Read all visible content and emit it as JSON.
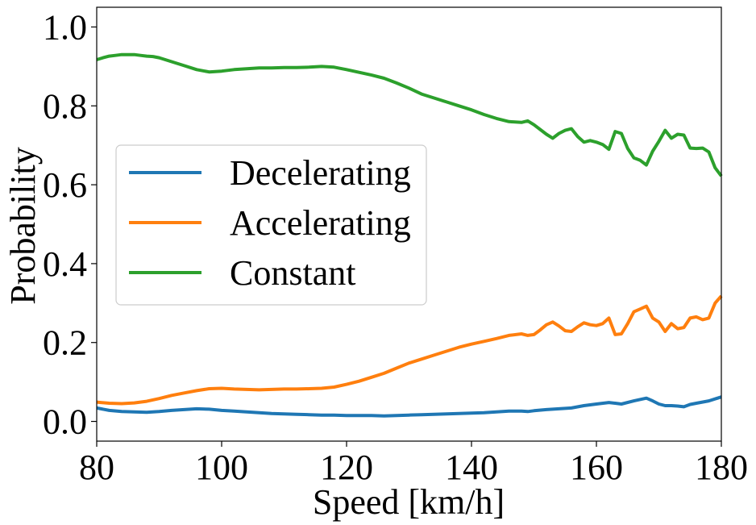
{
  "chart_data": {
    "type": "line",
    "title": "",
    "xlabel": "Speed [km/h]",
    "ylabel": "Probability",
    "xlim": [
      80,
      180
    ],
    "ylim": [
      -0.05,
      1.05
    ],
    "xticks": [
      80,
      100,
      120,
      140,
      160,
      180
    ],
    "yticks": [
      0.0,
      0.2,
      0.4,
      0.6,
      0.8,
      1.0
    ],
    "xtick_labels": [
      "80",
      "100",
      "120",
      "140",
      "160",
      "180"
    ],
    "ytick_labels": [
      "0.0",
      "0.2",
      "0.4",
      "0.6",
      "0.8",
      "1.0"
    ],
    "grid": false,
    "legend_position": "center-left",
    "series": [
      {
        "name": "Decelerating",
        "color": "#1f77b4",
        "x": [
          80,
          82,
          84,
          86,
          88,
          90,
          92,
          94,
          96,
          98,
          100,
          102,
          104,
          106,
          108,
          110,
          112,
          114,
          116,
          118,
          120,
          122,
          124,
          126,
          128,
          130,
          132,
          134,
          136,
          138,
          140,
          142,
          144,
          146,
          148,
          149,
          150,
          152,
          154,
          156,
          158,
          160,
          162,
          163,
          164,
          166,
          168,
          169,
          170,
          171,
          172,
          173,
          174,
          175,
          176,
          178,
          180
        ],
        "y": [
          0.034,
          0.028,
          0.025,
          0.024,
          0.023,
          0.025,
          0.028,
          0.03,
          0.032,
          0.031,
          0.028,
          0.026,
          0.024,
          0.022,
          0.02,
          0.019,
          0.018,
          0.017,
          0.016,
          0.016,
          0.015,
          0.015,
          0.015,
          0.014,
          0.015,
          0.016,
          0.017,
          0.018,
          0.019,
          0.02,
          0.021,
          0.022,
          0.024,
          0.026,
          0.026,
          0.025,
          0.027,
          0.03,
          0.032,
          0.034,
          0.04,
          0.044,
          0.048,
          0.046,
          0.044,
          0.052,
          0.059,
          0.052,
          0.044,
          0.04,
          0.04,
          0.039,
          0.037,
          0.043,
          0.046,
          0.052,
          0.062
        ]
      },
      {
        "name": "Accelerating",
        "color": "#ff7f0e",
        "x": [
          80,
          82,
          84,
          86,
          88,
          90,
          92,
          94,
          96,
          98,
          100,
          102,
          104,
          106,
          108,
          110,
          112,
          114,
          116,
          118,
          120,
          122,
          124,
          126,
          128,
          130,
          132,
          134,
          136,
          138,
          140,
          142,
          144,
          146,
          148,
          149,
          150,
          151,
          152,
          153,
          154,
          155,
          156,
          157,
          158,
          159,
          160,
          161,
          162,
          163,
          164,
          165,
          166,
          167,
          168,
          169,
          170,
          171,
          172,
          173,
          174,
          175,
          176,
          177,
          178,
          179,
          180
        ],
        "y": [
          0.049,
          0.046,
          0.045,
          0.047,
          0.051,
          0.058,
          0.066,
          0.072,
          0.078,
          0.083,
          0.084,
          0.082,
          0.081,
          0.08,
          0.081,
          0.082,
          0.082,
          0.083,
          0.084,
          0.087,
          0.094,
          0.102,
          0.112,
          0.122,
          0.135,
          0.148,
          0.158,
          0.168,
          0.178,
          0.188,
          0.196,
          0.203,
          0.21,
          0.218,
          0.222,
          0.218,
          0.22,
          0.232,
          0.245,
          0.252,
          0.242,
          0.23,
          0.228,
          0.24,
          0.25,
          0.245,
          0.243,
          0.248,
          0.262,
          0.22,
          0.222,
          0.248,
          0.278,
          0.285,
          0.292,
          0.262,
          0.252,
          0.228,
          0.248,
          0.235,
          0.238,
          0.262,
          0.265,
          0.258,
          0.262,
          0.3,
          0.318
        ]
      },
      {
        "name": "Constant",
        "color": "#2ca02c",
        "x": [
          80,
          81,
          82,
          83,
          84,
          85,
          86,
          87,
          88,
          89,
          90,
          92,
          94,
          96,
          98,
          100,
          102,
          104,
          106,
          108,
          110,
          112,
          114,
          116,
          118,
          120,
          122,
          124,
          126,
          128,
          130,
          132,
          134,
          136,
          138,
          140,
          142,
          144,
          146,
          148,
          149,
          150,
          151,
          152,
          153,
          154,
          155,
          156,
          157,
          158,
          159,
          160,
          161,
          162,
          163,
          164,
          165,
          166,
          167,
          168,
          169,
          170,
          171,
          172,
          173,
          174,
          175,
          176,
          177,
          178,
          179,
          180
        ],
        "y": [
          0.917,
          0.922,
          0.926,
          0.928,
          0.93,
          0.93,
          0.93,
          0.928,
          0.926,
          0.925,
          0.922,
          0.912,
          0.902,
          0.892,
          0.886,
          0.888,
          0.892,
          0.894,
          0.896,
          0.896,
          0.897,
          0.897,
          0.898,
          0.9,
          0.898,
          0.892,
          0.885,
          0.878,
          0.87,
          0.858,
          0.845,
          0.83,
          0.82,
          0.81,
          0.8,
          0.79,
          0.778,
          0.768,
          0.76,
          0.758,
          0.762,
          0.752,
          0.74,
          0.728,
          0.718,
          0.73,
          0.738,
          0.742,
          0.722,
          0.708,
          0.712,
          0.708,
          0.702,
          0.69,
          0.735,
          0.73,
          0.692,
          0.668,
          0.662,
          0.65,
          0.685,
          0.71,
          0.738,
          0.718,
          0.728,
          0.726,
          0.693,
          0.692,
          0.693,
          0.683,
          0.643,
          0.622
        ]
      }
    ]
  }
}
